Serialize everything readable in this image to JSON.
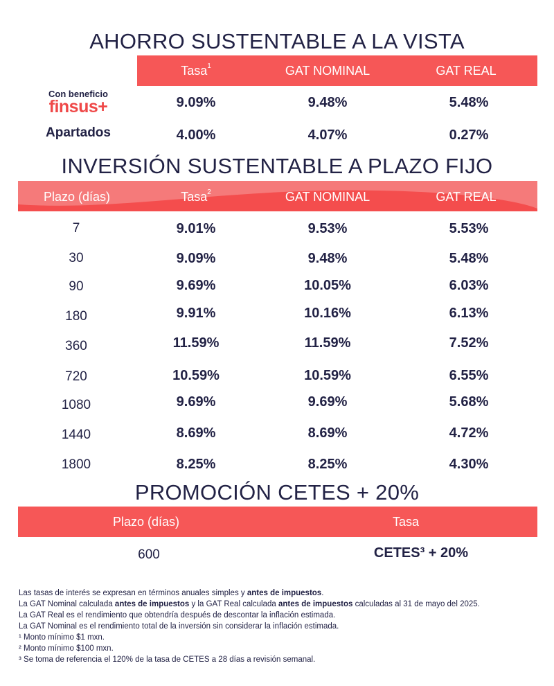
{
  "ahorro": {
    "title": "AHORRO SUSTENTABLE A LA VISTA",
    "headers": {
      "tasa": "Tasa",
      "tasa_sup": "1",
      "gat_nominal": "GAT NOMINAL",
      "gat_real": "GAT REAL"
    },
    "finsus_row": {
      "caption": "Con beneficio",
      "logo": "finsus+",
      "tasa": "9.09%",
      "gat_nominal": "9.48%",
      "gat_real": "5.48%"
    },
    "apartados_row": {
      "label": "Apartados",
      "tasa": "4.00%",
      "gat_nominal": "4.07%",
      "gat_real": "0.27%"
    }
  },
  "inversion": {
    "title": "INVERSIÓN SUSTENTABLE A PLAZO FIJO",
    "headers": {
      "plazo": "Plazo (días)",
      "tasa": "Tasa",
      "tasa_sup": "2",
      "gat_nominal": "GAT NOMINAL",
      "gat_real": "GAT REAL"
    },
    "rows": [
      {
        "plazo": "7",
        "tasa": "9.01%",
        "gat_nominal": "9.53%",
        "gat_real": "5.53%"
      },
      {
        "plazo": "30",
        "tasa": "9.09%",
        "gat_nominal": "9.48%",
        "gat_real": "5.48%"
      },
      {
        "plazo": "90",
        "tasa": "9.69%",
        "gat_nominal": "10.05%",
        "gat_real": "6.03%"
      },
      {
        "plazo": "180",
        "tasa": "9.91%",
        "gat_nominal": "10.16%",
        "gat_real": "6.13%"
      },
      {
        "plazo": "360",
        "tasa": "11.59%",
        "gat_nominal": "11.59%",
        "gat_real": "7.52%"
      },
      {
        "plazo": "720",
        "tasa": "10.59%",
        "gat_nominal": "10.59%",
        "gat_real": "6.55%"
      },
      {
        "plazo": "1080",
        "tasa": "9.69%",
        "gat_nominal": "9.69%",
        "gat_real": "5.68%"
      },
      {
        "plazo": "1440",
        "tasa": "8.69%",
        "gat_nominal": "8.69%",
        "gat_real": "4.72%"
      },
      {
        "plazo": "1800",
        "tasa": "8.25%",
        "gat_nominal": "8.25%",
        "gat_real": "4.30%"
      }
    ]
  },
  "promocion": {
    "title": "PROMOCIÓN CETES + 20%",
    "headers": {
      "plazo": "Plazo (días)",
      "tasa": "Tasa"
    },
    "row": {
      "plazo": "600",
      "tasa": "CETES³ + 20%"
    }
  },
  "footer": {
    "line1_a": "Las tasas de interés se expresan en términos anuales simples y ",
    "line1_b": "antes de impuestos",
    "line1_c": ".",
    "line2_a": "La GAT Nominal calculada ",
    "line2_b": "antes de impuestos",
    "line2_c": " y la GAT Real calculada ",
    "line2_d": "antes de impuestos",
    "line2_e": " calculadas al 31 de mayo del 2025.",
    "line3": "La GAT Real es el rendimiento que obtendría después de descontar la inflación estimada.",
    "line4": "La GAT Nominal es el rendimiento total de la inversión sin considerar la inflación estimada.",
    "line5": "¹ Monto mínimo $1 mxn.",
    "line6": "² Monto mínimo $100 mxn.",
    "line7": "³ Se toma de referencia el 120% de la tasa de CETES a 28 días a revisión semanal."
  },
  "colors": {
    "accent": "#f65757",
    "text": "#222245"
  }
}
